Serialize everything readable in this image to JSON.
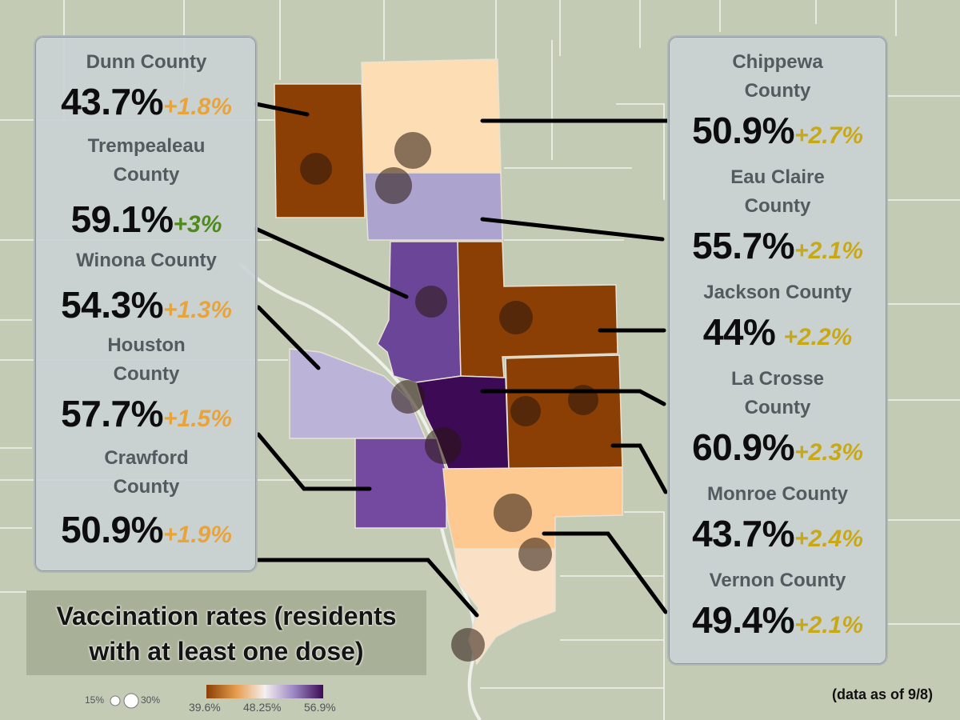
{
  "title": "Vaccination rates (residents with at least one dose)",
  "as_of": "(data as of 9/8)",
  "colors": {
    "background": "#c3cbb5",
    "orange_positive": "#e8a33b",
    "green_positive": "#4e8b1e",
    "gold_positive": "#c9a816",
    "scale_low": "#8a3f06",
    "scale_mid": "#f5f0ef",
    "scale_high": "#3c0b53"
  },
  "left_counties": [
    {
      "name": "Dunn County",
      "rate": "43.7%",
      "change": "+1.8%",
      "change_color": "#e8a33b",
      "map_fill": "#8c3f05"
    },
    {
      "name": "Trempealeau County",
      "rate": "59.1%",
      "change": "+3%",
      "change_color": "#4e8b1e",
      "map_fill": "#6b4597"
    },
    {
      "name": "Winona County",
      "rate": "54.3%",
      "change": "+1.3%",
      "change_color": "#e8a33b",
      "map_fill": "#bcb4d8"
    },
    {
      "name": "Houston County",
      "rate": "57.7%",
      "change": "+1.5%",
      "change_color": "#e8a33b",
      "map_fill": "#7449a0"
    },
    {
      "name": "Crawford County",
      "rate": "50.9%",
      "change": "+1.9%",
      "change_color": "#e8a33b",
      "map_fill": "#fae0c5"
    }
  ],
  "right_counties": [
    {
      "name": "Chippewa County",
      "rate": "50.9%",
      "change": "+2.7%",
      "change_color": "#c9a816",
      "map_fill": "#fddeb4"
    },
    {
      "name": "Eau Claire County",
      "rate": "55.7%",
      "change": "+2.1%",
      "change_color": "#c9a816",
      "map_fill": "#aca3cf"
    },
    {
      "name": "Jackson County",
      "rate": "44%",
      "change": "+2.2%",
      "change_color": "#c9a816",
      "map_fill": "#8c3f05"
    },
    {
      "name": "La Crosse County",
      "rate": "60.9%",
      "change": "+2.3%",
      "change_color": "#c9a816",
      "map_fill": "#3d0a55"
    },
    {
      "name": "Monroe County",
      "rate": "43.7%",
      "change": "+2.4%",
      "change_color": "#c9a816",
      "map_fill": "#8c3f05"
    },
    {
      "name": "Vernon County",
      "rate": "49.4%",
      "change": "+2.1%",
      "change_color": "#c9a816",
      "map_fill": "#fdc990"
    }
  ],
  "legend": {
    "size_min": "15%",
    "size_max": "30%",
    "color_min": "39.6%",
    "color_mid": "48.25%",
    "color_max": "56.9%"
  }
}
